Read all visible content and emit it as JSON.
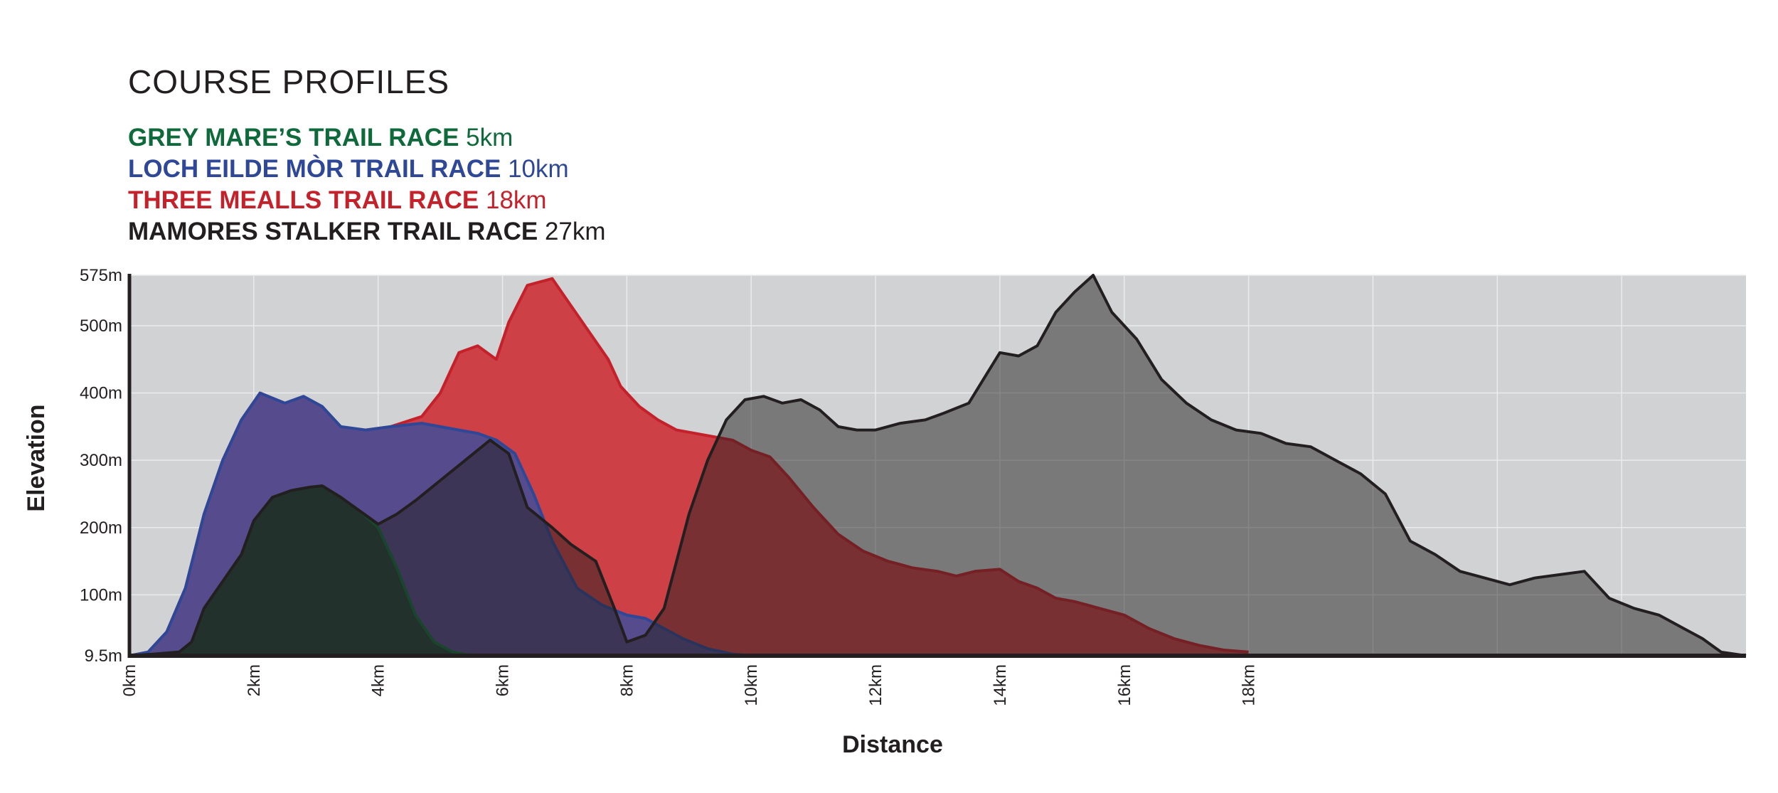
{
  "page": {
    "title": "COURSE PROFILES"
  },
  "legend": [
    {
      "name": "GREY MARE’S TRAIL RACE",
      "distance": "5km",
      "color": "#0e6a3a"
    },
    {
      "name": "LOCH EILDE MÒR TRAIL RACE",
      "distance": "10km",
      "color": "#2e4797"
    },
    {
      "name": "THREE MEALLS TRAIL RACE",
      "distance": "18km",
      "color": "#c4212b"
    },
    {
      "name": "MAMORES STALKER TRAIL RACE",
      "distance": "27km",
      "color": "#231f20"
    }
  ],
  "colors": {
    "plot_background": "#d0d2d4",
    "grid": "#eaebec",
    "axis": "#231f20"
  },
  "chart_data": {
    "type": "area",
    "xlabel": "Distance",
    "ylabel": "Elevation",
    "xlim": [
      0,
      26
    ],
    "ylim": [
      9.5,
      575
    ],
    "x_ticks": [
      {
        "value": 0,
        "label": "0km"
      },
      {
        "value": 2,
        "label": "2km"
      },
      {
        "value": 4,
        "label": "4km"
      },
      {
        "value": 6,
        "label": "6km"
      },
      {
        "value": 8,
        "label": "8km"
      },
      {
        "value": 10,
        "label": "10km"
      },
      {
        "value": 12,
        "label": "12km"
      },
      {
        "value": 14,
        "label": "14km"
      },
      {
        "value": 16,
        "label": "16km"
      },
      {
        "value": 18,
        "label": "18km"
      }
    ],
    "x_gridlines": [
      2,
      4,
      6,
      8,
      10,
      12,
      14,
      16,
      18,
      20,
      22,
      24
    ],
    "y_ticks": [
      {
        "value": 9.5,
        "label": "9.5m"
      },
      {
        "value": 100,
        "label": "100m"
      },
      {
        "value": 200,
        "label": "200m"
      },
      {
        "value": 300,
        "label": "300m"
      },
      {
        "value": 400,
        "label": "400m"
      },
      {
        "value": 500,
        "label": "500m"
      },
      {
        "value": 575,
        "label": "575m"
      }
    ],
    "grid": true,
    "series": [
      {
        "name": "THREE MEALLS TRAIL RACE",
        "color": "#c4212b",
        "fill": "#cd4046",
        "x": [
          0,
          0.3,
          0.6,
          0.9,
          1.2,
          1.5,
          1.8,
          2.1,
          2.5,
          2.8,
          3.1,
          3.4,
          3.8,
          4.2,
          4.7,
          5.0,
          5.3,
          5.6,
          5.9,
          6.1,
          6.4,
          6.8,
          7.1,
          7.4,
          7.7,
          7.9,
          8.2,
          8.5,
          8.8,
          9.1,
          9.4,
          9.7,
          10.0,
          10.3,
          10.6,
          11.0,
          11.4,
          11.8,
          12.2,
          12.6,
          13.0,
          13.3,
          13.6,
          14.0,
          14.3,
          14.6,
          14.9,
          15.2,
          15.6,
          16.0,
          16.4,
          16.8,
          17.2,
          17.6,
          18.0
        ],
        "y": [
          9.5,
          15,
          45,
          110,
          220,
          300,
          360,
          400,
          385,
          390,
          375,
          340,
          345,
          350,
          365,
          400,
          460,
          470,
          450,
          505,
          560,
          570,
          530,
          490,
          450,
          410,
          380,
          360,
          345,
          340,
          335,
          330,
          315,
          305,
          275,
          230,
          190,
          165,
          150,
          140,
          135,
          128,
          135,
          138,
          120,
          110,
          95,
          90,
          80,
          70,
          50,
          35,
          25,
          18,
          15
        ]
      },
      {
        "name": "LOCH EILDE MÒR TRAIL RACE",
        "color": "#2e4797",
        "fill": "#564b8c",
        "x": [
          0,
          0.3,
          0.6,
          0.9,
          1.2,
          1.5,
          1.8,
          2.1,
          2.5,
          2.8,
          3.1,
          3.4,
          3.8,
          4.2,
          4.7,
          5.0,
          5.3,
          5.6,
          5.9,
          6.2,
          6.5,
          6.8,
          7.2,
          7.6,
          8.0,
          8.3,
          8.6,
          8.9,
          9.3,
          9.7,
          10.0
        ],
        "y": [
          9.5,
          15,
          45,
          110,
          220,
          300,
          360,
          400,
          385,
          395,
          380,
          350,
          345,
          350,
          355,
          350,
          345,
          340,
          330,
          310,
          250,
          180,
          110,
          85,
          70,
          65,
          50,
          35,
          20,
          12,
          9.5
        ]
      },
      {
        "name": "GREY MARE’S TRAIL RACE",
        "color": "#0e6a3a",
        "fill": "#214236",
        "x": [
          0,
          0.4,
          0.8,
          1.0,
          1.2,
          1.5,
          1.8,
          2.0,
          2.3,
          2.6,
          2.9,
          3.1,
          3.4,
          3.7,
          4.0,
          4.3,
          4.6,
          4.9,
          5.2,
          5.5,
          6.0
        ],
        "y": [
          9.5,
          12,
          15,
          30,
          80,
          120,
          160,
          210,
          245,
          255,
          260,
          262,
          245,
          225,
          200,
          140,
          70,
          30,
          15,
          10,
          9.5
        ]
      },
      {
        "name": "MAMORES STALKER TRAIL RACE",
        "color": "#231f20",
        "fill": "rgba(35,31,32,0.5)",
        "x": [
          0,
          0.4,
          0.8,
          1.0,
          1.2,
          1.5,
          1.8,
          2.0,
          2.3,
          2.6,
          2.9,
          3.1,
          3.4,
          3.7,
          4.0,
          4.3,
          4.6,
          5.0,
          5.4,
          5.8,
          6.1,
          6.4,
          6.8,
          7.1,
          7.5,
          7.8,
          8.0,
          8.3,
          8.6,
          8.8,
          9.0,
          9.3,
          9.6,
          9.9,
          10.2,
          10.5,
          10.8,
          11.1,
          11.4,
          11.7,
          12.0,
          12.4,
          12.8,
          13.1,
          13.5,
          13.8,
          14.0,
          14.3,
          14.6,
          14.9,
          15.2,
          15.5,
          15.8,
          16.2,
          16.6,
          17.0,
          17.4,
          17.8,
          18.2,
          18.6,
          19.0,
          19.4,
          19.8,
          20.2,
          20.6,
          21.0,
          21.4,
          21.8,
          22.2,
          22.6,
          23.0,
          23.4,
          23.8,
          24.2,
          24.6,
          25.0,
          25.3,
          25.6,
          26.0
        ],
        "y": [
          9.5,
          12,
          15,
          30,
          80,
          120,
          160,
          210,
          245,
          255,
          260,
          262,
          245,
          225,
          205,
          220,
          240,
          270,
          300,
          330,
          310,
          230,
          200,
          175,
          150,
          80,
          30,
          40,
          80,
          150,
          220,
          300,
          360,
          390,
          395,
          385,
          390,
          375,
          350,
          345,
          345,
          355,
          360,
          370,
          385,
          430,
          460,
          455,
          470,
          520,
          550,
          575,
          520,
          480,
          420,
          385,
          360,
          345,
          340,
          325,
          320,
          300,
          280,
          250,
          180,
          160,
          135,
          125,
          115,
          125,
          130,
          135,
          95,
          80,
          70,
          50,
          35,
          15,
          9.5
        ]
      }
    ]
  }
}
